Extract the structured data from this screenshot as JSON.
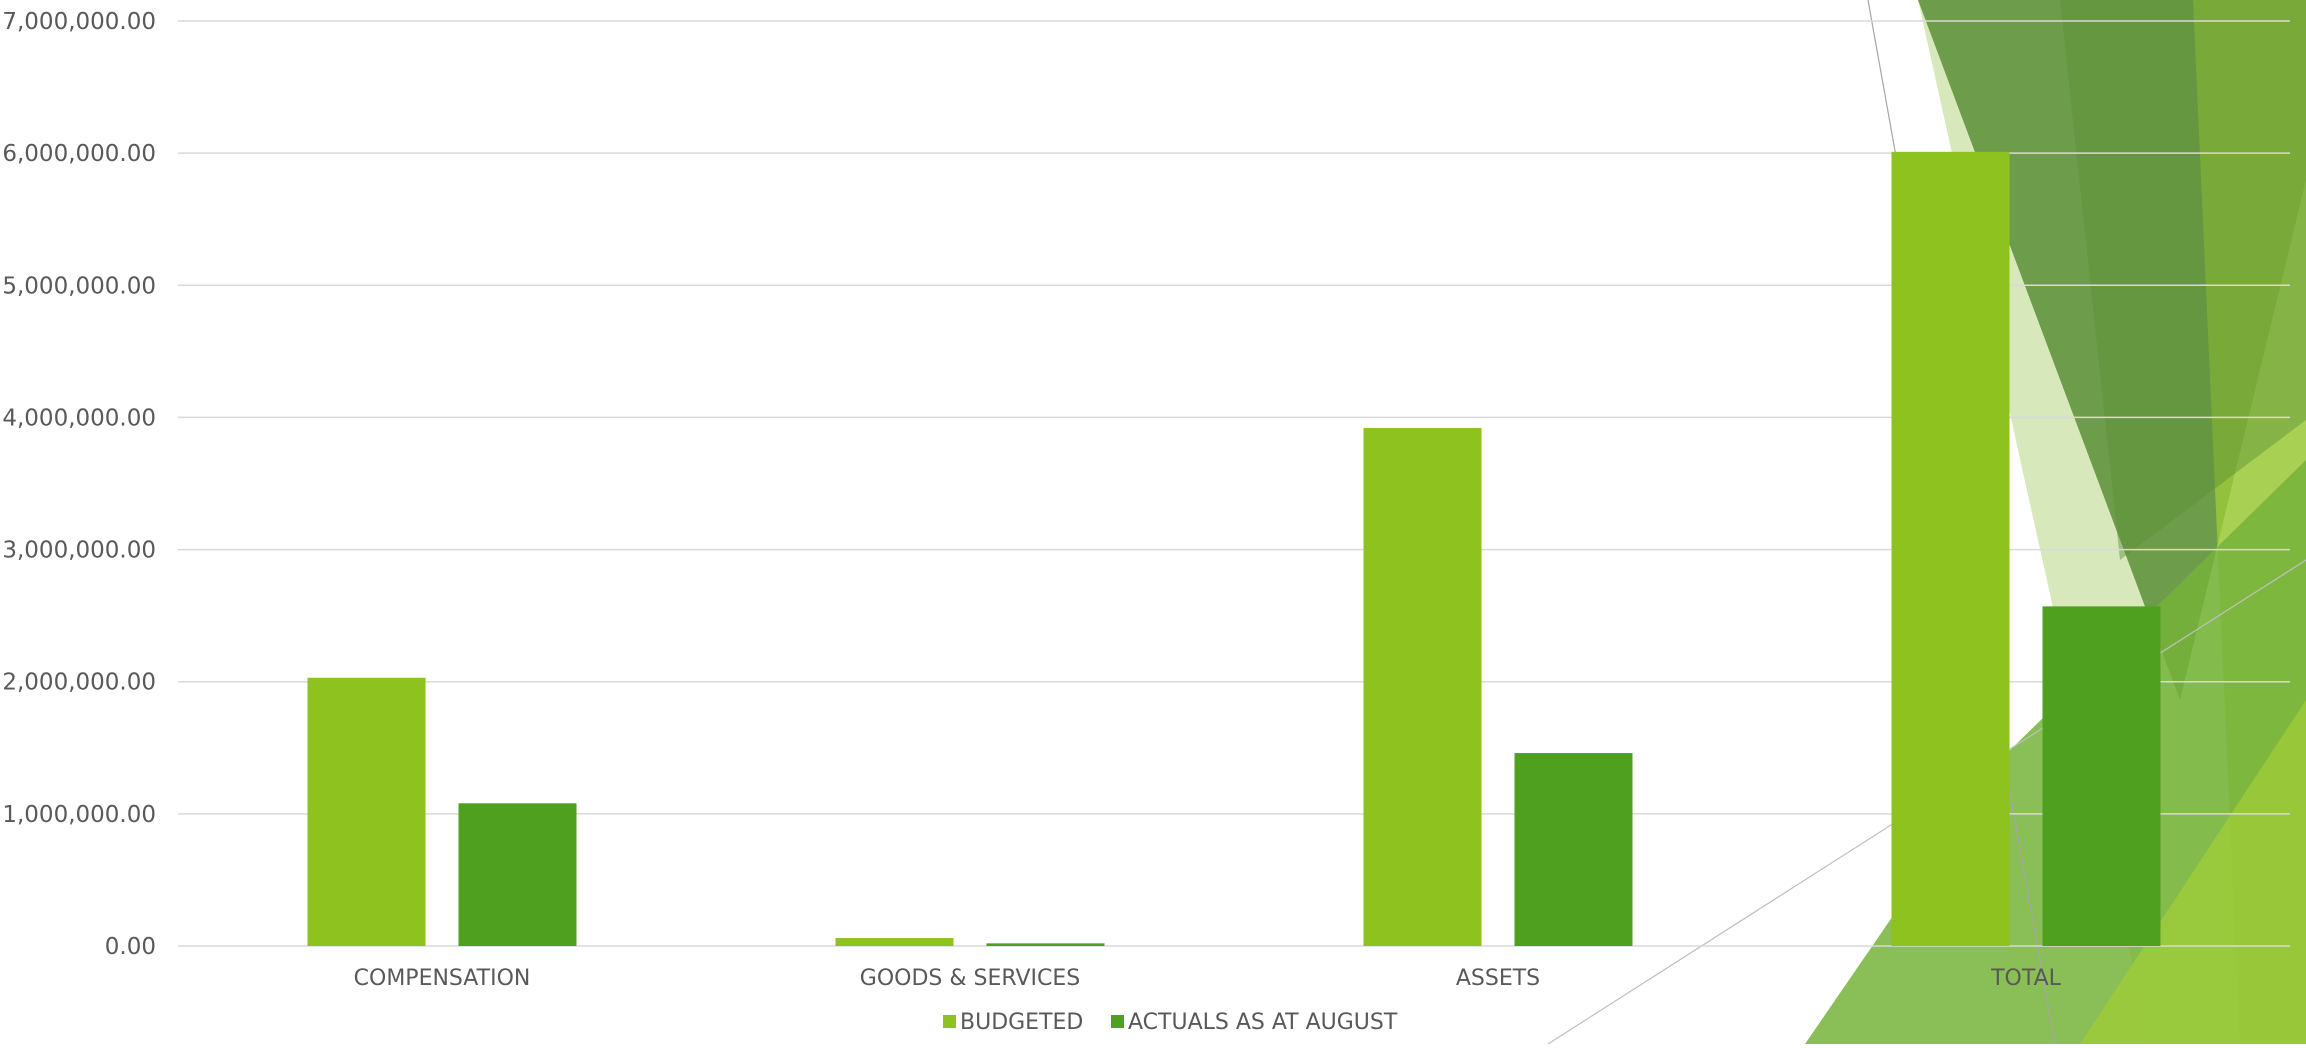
{
  "colors": {
    "budgeted": "#8DC21F",
    "actuals": "#50A020",
    "gridline": "#D9D9D9",
    "axis_text": "#595959",
    "deco_dark": "#5A8F36",
    "deco_mid": "#76B33A",
    "deco_light": "#D3E6B4",
    "deco_bright": "#9CCB3A"
  },
  "chart_data": {
    "type": "bar",
    "title": "",
    "xlabel": "",
    "ylabel": "",
    "categories": [
      "COMPENSATION",
      "GOODS & SERVICES",
      "ASSETS",
      "TOTAL"
    ],
    "series": [
      {
        "name": "BUDGETED",
        "values": [
          2030000,
          60000,
          3920000,
          6010000
        ]
      },
      {
        "name": "ACTUALS AS AT AUGUST",
        "values": [
          1080000,
          20000,
          1460000,
          2570000
        ]
      }
    ],
    "ylim": [
      0,
      7000000
    ],
    "yticks": [
      "0.00",
      "1,000,000.00",
      "2,000,000.00",
      "3,000,000.00",
      "4,000,000.00",
      "5,000,000.00",
      "6,000,000.00",
      "7,000,000.00"
    ],
    "grid": true,
    "legend_position": "bottom"
  }
}
